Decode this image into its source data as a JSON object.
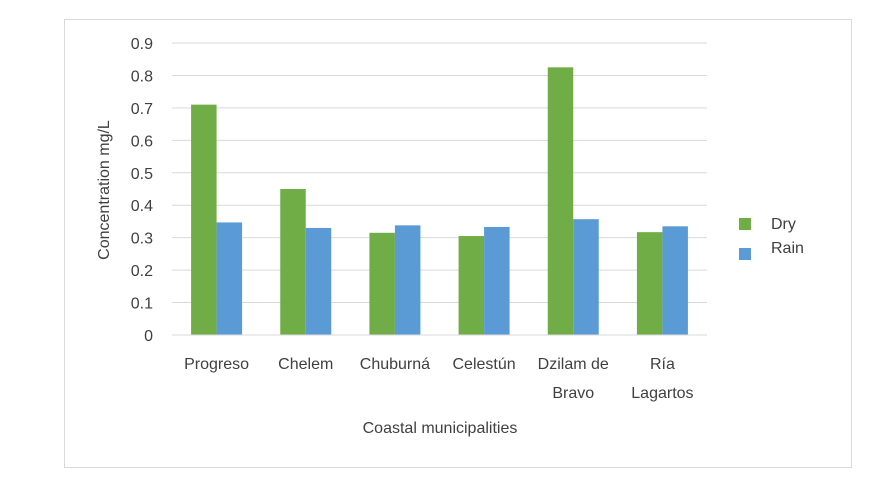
{
  "chart_data": {
    "type": "bar",
    "categories": [
      [
        "Progreso"
      ],
      [
        "Chelem"
      ],
      [
        "Chuburná"
      ],
      [
        "Celestún"
      ],
      [
        "Dzilam de",
        "Bravo"
      ],
      [
        "Ría",
        "Lagartos"
      ]
    ],
    "series": [
      {
        "name": "Dry",
        "color": "#70ad47",
        "values": [
          0.71,
          0.45,
          0.315,
          0.305,
          0.825,
          0.317
        ]
      },
      {
        "name": "Rain",
        "color": "#5b9bd5",
        "values": [
          0.347,
          0.33,
          0.338,
          0.333,
          0.357,
          0.335
        ]
      }
    ],
    "title": "",
    "xlabel": "Coastal municipalities",
    "ylabel": "Concentration mg/L",
    "ylim": [
      0,
      0.9
    ],
    "yticks": [
      "0",
      "0.1",
      "0.2",
      "0.3",
      "0.4",
      "0.5",
      "0.6",
      "0.7",
      "0.8",
      "0.9"
    ],
    "grid": true,
    "legend_position": "right"
  }
}
